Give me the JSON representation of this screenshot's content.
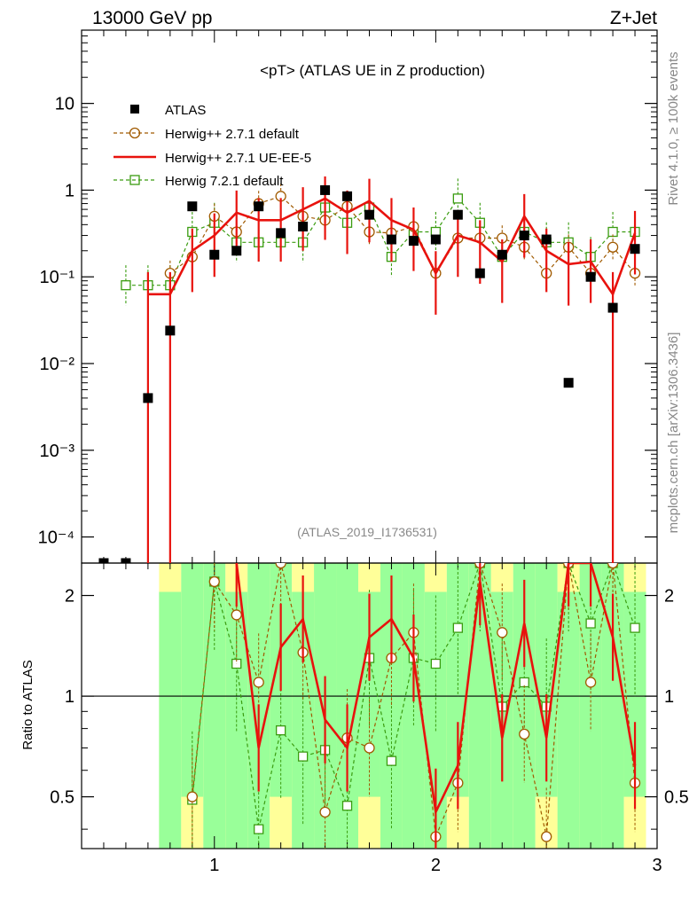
{
  "header": {
    "left": "13000 GeV pp",
    "right": "Z+Jet"
  },
  "side_text": {
    "rivet": "Rivet 4.1.0, ≥ 100k events",
    "mcplots": "mcplots.cern.ch [arXiv:1306.3436]"
  },
  "chart_data": {
    "type": "scatter",
    "title": "<pT> (ATLAS UE in Z production)",
    "watermark": "(ATLAS_2019_I1736531)",
    "xlim": [
      0.4,
      3.0
    ],
    "main_ylim": [
      5e-05,
      70
    ],
    "ratio_ylim": [
      0.35,
      2.5
    ],
    "ratio_ylabel": "Ratio to ATLAS",
    "x_ticks": [
      "1",
      "2",
      "3"
    ],
    "main_y_ticks": [
      "10",
      "1",
      "10⁻¹",
      "10⁻²",
      "10⁻³",
      "10⁻⁴"
    ],
    "main_y_tick_values": [
      10,
      1,
      0.1,
      0.01,
      0.001,
      0.0001
    ],
    "ratio_y_ticks": [
      "2",
      "1",
      "0.5"
    ],
    "ratio_y_tick_values": [
      2,
      1,
      0.5
    ],
    "x": [
      0.5,
      0.6,
      0.7,
      0.8,
      0.9,
      1.0,
      1.1,
      1.2,
      1.3,
      1.4,
      1.5,
      1.6,
      1.7,
      1.8,
      1.9,
      2.0,
      2.1,
      2.2,
      2.3,
      2.4,
      2.5,
      2.6,
      2.7,
      2.8,
      2.9
    ],
    "legend": [
      {
        "name": "ATLAS",
        "color": "#000000",
        "style": "marker-square"
      },
      {
        "name": "Herwig++ 2.7.1 default",
        "color": "#a05a00",
        "style": "dashed-circle"
      },
      {
        "name": "Herwig++ 2.7.1 UE-EE-5",
        "color": "#e8120d",
        "style": "solid-line"
      },
      {
        "name": "Herwig 7.2.1 default",
        "color": "#3a9c10",
        "style": "dashed-open-square"
      }
    ],
    "series": [
      {
        "name": "ATLAS",
        "values": [
          5e-05,
          5e-05,
          0.004,
          0.024,
          0.65,
          0.18,
          0.2,
          0.65,
          0.32,
          0.38,
          1.0,
          0.85,
          0.52,
          0.27,
          0.26,
          0.27,
          0.52,
          0.11,
          0.18,
          0.3,
          0.27,
          0.006,
          0.1,
          0.044,
          0.21
        ]
      },
      {
        "name": "Herwig++ 2.7.1 default",
        "values": [
          null,
          null,
          null,
          0.11,
          0.17,
          0.5,
          0.33,
          0.7,
          0.85,
          0.5,
          0.45,
          0.65,
          0.33,
          0.32,
          0.38,
          0.11,
          0.28,
          0.28,
          0.28,
          0.22,
          0.11,
          0.22,
          0.11,
          0.22,
          0.11
        ],
        "ratio": [
          null,
          null,
          null,
          null,
          0.5,
          2.2,
          1.75,
          1.1,
          2.5,
          1.35,
          0.45,
          0.75,
          0.7,
          1.3,
          1.55,
          0.38,
          0.55,
          2.5,
          1.55,
          0.77,
          0.38,
          2.5,
          1.1,
          2.5,
          0.55
        ]
      },
      {
        "name": "Herwig++ 2.7.1 UE-EE-5",
        "values": [
          null,
          null,
          0.063,
          0.063,
          0.2,
          0.3,
          0.55,
          0.45,
          0.45,
          0.6,
          0.8,
          0.55,
          0.75,
          0.45,
          0.35,
          0.11,
          0.3,
          0.25,
          0.15,
          0.5,
          0.2,
          0.14,
          0.15,
          0.063,
          0.32
        ],
        "ratio": [
          null,
          null,
          null,
          null,
          null,
          null,
          2.5,
          0.7,
          1.4,
          1.7,
          0.85,
          0.7,
          1.5,
          1.7,
          1.3,
          0.45,
          0.62,
          2.2,
          0.75,
          1.65,
          0.75,
          2.5,
          2.5,
          1.5,
          0.62
        ]
      },
      {
        "name": "Herwig 7.2.1 default",
        "values": [
          null,
          0.08,
          0.08,
          0.08,
          0.33,
          0.42,
          0.25,
          0.25,
          0.25,
          0.25,
          0.63,
          0.42,
          0.63,
          0.17,
          0.33,
          0.33,
          0.8,
          0.42,
          0.17,
          0.33,
          0.25,
          0.25,
          0.17,
          0.33,
          0.33
        ],
        "ratio": [
          null,
          null,
          null,
          null,
          0.49,
          2.2,
          1.25,
          0.4,
          0.79,
          0.66,
          0.69,
          0.47,
          1.3,
          0.64,
          1.3,
          1.25,
          1.6,
          2.5,
          0.93,
          1.1,
          0.93,
          2.5,
          1.65,
          2.5,
          1.6
        ]
      }
    ]
  }
}
